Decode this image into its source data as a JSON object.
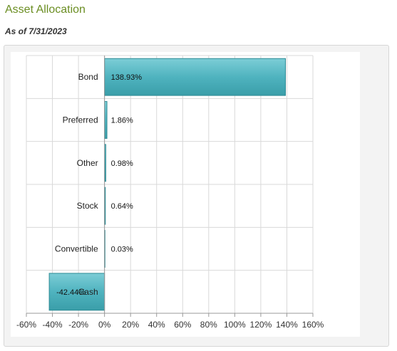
{
  "header": {
    "title": "Asset Allocation",
    "as_of": "As of 7/31/2023"
  },
  "colors": {
    "title": "#6b8e23",
    "bar_fill": "#4fb3bf",
    "bar_edge": "#2e8b95",
    "grid": "#d9d9d9",
    "panel_bg": "#f3f3f3"
  },
  "chart_data": {
    "type": "bar",
    "orientation": "horizontal",
    "categories": [
      "Bond",
      "Preferred",
      "Other",
      "Stock",
      "Convertible",
      "Cash"
    ],
    "values": [
      138.93,
      1.86,
      0.98,
      0.64,
      0.03,
      -42.44
    ],
    "value_labels": [
      "138.93%",
      "1.86%",
      "0.98%",
      "0.64%",
      "0.03%",
      "-42.44%"
    ],
    "xlim": [
      -60,
      160
    ],
    "xticks": [
      -60,
      -40,
      -20,
      0,
      20,
      40,
      60,
      80,
      100,
      120,
      140,
      160
    ],
    "xtick_labels": [
      "-60%",
      "-40%",
      "-20%",
      "0%",
      "20%",
      "40%",
      "60%",
      "80%",
      "100%",
      "120%",
      "140%",
      "160%"
    ],
    "grid": true,
    "legend": "none",
    "title": "",
    "xlabel": "",
    "ylabel": ""
  }
}
